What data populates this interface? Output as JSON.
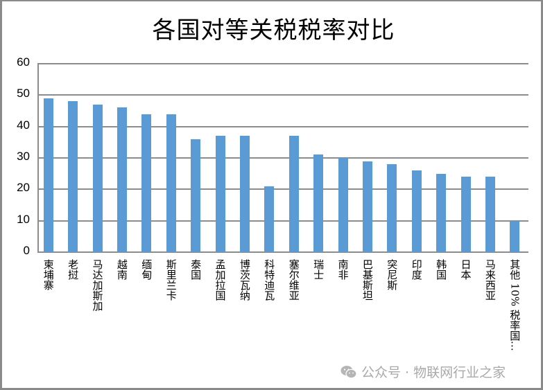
{
  "chart_data": {
    "type": "bar",
    "title": "各国对等关税税率对比",
    "xlabel": "",
    "ylabel": "",
    "ylim": [
      0,
      60
    ],
    "yticks": [
      0,
      10,
      20,
      30,
      40,
      50,
      60
    ],
    "grid": true,
    "legend": null,
    "bar_color": "#5b9bd5",
    "categories": [
      "柬埔寨",
      "老挝",
      "马达加斯加",
      "越南",
      "缅甸",
      "斯里兰卡",
      "泰国",
      "孟加拉国",
      "博茨瓦纳",
      "科特迪瓦",
      "塞尔维亚",
      "瑞士",
      "南非",
      "巴基斯坦",
      "突尼斯",
      "印度",
      "韩国",
      "日本",
      "马来西亚",
      "其他 10% 税率国…"
    ],
    "values": [
      49,
      48,
      47,
      46,
      44,
      44,
      36,
      37,
      37,
      21,
      37,
      31,
      30,
      29,
      28,
      26,
      25,
      24,
      24,
      10
    ]
  },
  "watermark": {
    "icon": "wechat-icon",
    "text": "公众号 · 物联网行业之家"
  },
  "colors": {
    "bar": "#5b9bd5",
    "grid": "#8c8c8c",
    "frame": "#8a8a8a",
    "watermark": "#a9a9a9"
  }
}
